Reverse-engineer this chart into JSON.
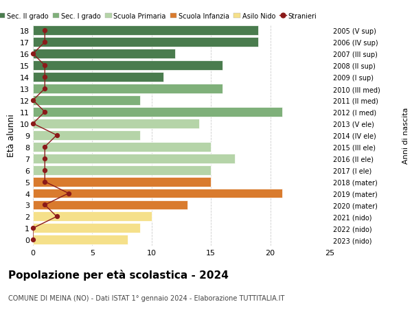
{
  "ages": [
    18,
    17,
    16,
    15,
    14,
    13,
    12,
    11,
    10,
    9,
    8,
    7,
    6,
    5,
    4,
    3,
    2,
    1,
    0
  ],
  "years": [
    "2005 (V sup)",
    "2006 (IV sup)",
    "2007 (III sup)",
    "2008 (II sup)",
    "2009 (I sup)",
    "2010 (III med)",
    "2011 (II med)",
    "2012 (I med)",
    "2013 (V ele)",
    "2014 (IV ele)",
    "2015 (III ele)",
    "2016 (II ele)",
    "2017 (I ele)",
    "2018 (mater)",
    "2019 (mater)",
    "2020 (mater)",
    "2021 (nido)",
    "2022 (nido)",
    "2023 (nido)"
  ],
  "bar_values": [
    19,
    19,
    12,
    16,
    11,
    16,
    9,
    21,
    14,
    9,
    15,
    17,
    15,
    15,
    21,
    13,
    10,
    9,
    8
  ],
  "bar_colors": [
    "#4a7c4e",
    "#4a7c4e",
    "#4a7c4e",
    "#4a7c4e",
    "#4a7c4e",
    "#7fb07a",
    "#7fb07a",
    "#7fb07a",
    "#b5d4a8",
    "#b5d4a8",
    "#b5d4a8",
    "#b5d4a8",
    "#b5d4a8",
    "#d97b2e",
    "#d97b2e",
    "#d97b2e",
    "#f5e08a",
    "#f5e08a",
    "#f5e08a"
  ],
  "stranieri_x": [
    1,
    1,
    0,
    1,
    1,
    1,
    0,
    1,
    0,
    2,
    1,
    1,
    1,
    1,
    3,
    1,
    2,
    0,
    0
  ],
  "title": "Popolazione per età scolastica - 2024",
  "subtitle": "COMUNE DI MEINA (NO) - Dati ISTAT 1° gennaio 2024 - Elaborazione TUTTITALIA.IT",
  "ylabel": "Età alunni",
  "right_label": "Anni di nascita",
  "legend_labels": [
    "Sec. II grado",
    "Sec. I grado",
    "Scuola Primaria",
    "Scuola Infanzia",
    "Asilo Nido",
    "Stranieri"
  ],
  "legend_colors": [
    "#4a7c4e",
    "#7fb07a",
    "#b5d4a8",
    "#d97b2e",
    "#f5e08a",
    "#8b1a1a"
  ],
  "color_stranieri": "#8b1a1a",
  "xlim": [
    0,
    25
  ],
  "xticks": [
    0,
    5,
    10,
    15,
    20,
    25
  ],
  "bg_color": "#ffffff",
  "grid_color": "#cccccc"
}
